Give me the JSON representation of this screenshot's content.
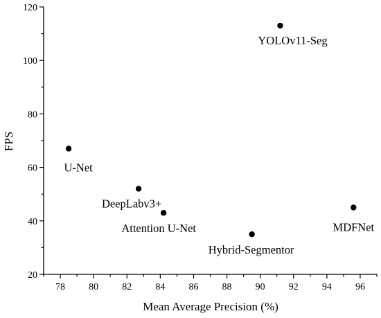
{
  "chart_data": {
    "type": "scatter",
    "xlabel": "Mean Average Precision (%)",
    "ylabel": "FPS",
    "xlim": [
      77,
      97
    ],
    "ylim": [
      20,
      120
    ],
    "x_ticks": [
      "78",
      "80",
      "82",
      "84",
      "86",
      "88",
      "90",
      "92",
      "94",
      "96"
    ],
    "x_tick_values": [
      78,
      80,
      82,
      84,
      86,
      88,
      90,
      92,
      94,
      96
    ],
    "y_ticks": [
      "20",
      "40",
      "60",
      "80",
      "100",
      "120"
    ],
    "y_tick_values": [
      20,
      40,
      60,
      80,
      100,
      120
    ],
    "minor_ticks": true,
    "grid": false,
    "legend": "none",
    "marker_color": "#000000",
    "points": [
      {
        "label": "U-Net",
        "x": 78.5,
        "y": 67
      },
      {
        "label": "DeepLabv3+",
        "x": 82.7,
        "y": 52
      },
      {
        "label": "Attention U-Net",
        "x": 84.2,
        "y": 43
      },
      {
        "label": "YOLOv11-Seg",
        "x": 91.2,
        "y": 113
      },
      {
        "label": "Hybrid-Segmentor",
        "x": 89.5,
        "y": 35
      },
      {
        "label": "MDFNet",
        "x": 95.6,
        "y": 45
      }
    ]
  }
}
